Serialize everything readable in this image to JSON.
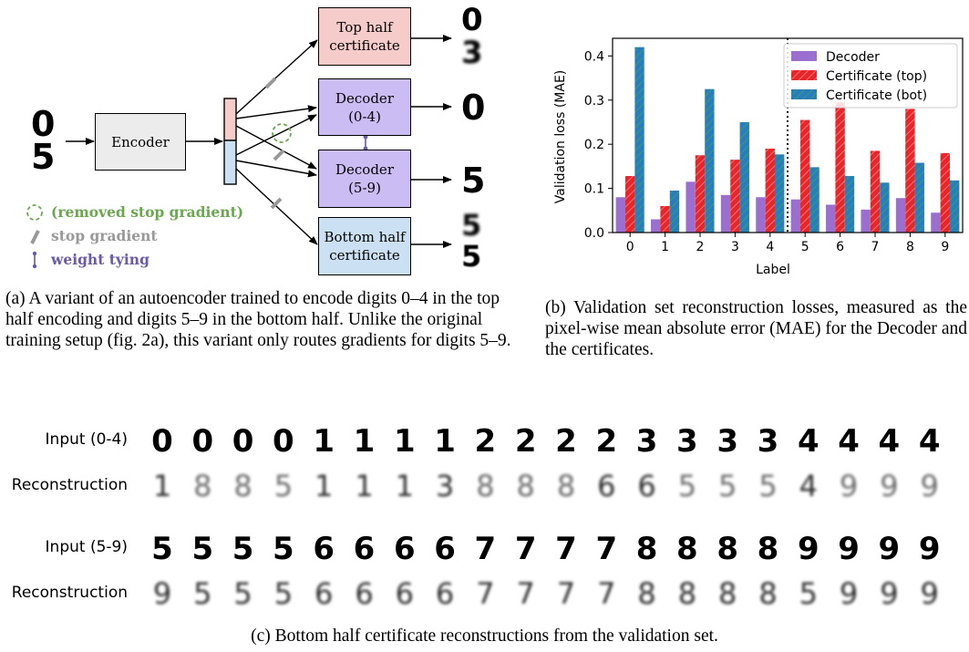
{
  "diagram": {
    "input_digits": [
      "0",
      "5"
    ],
    "encoder_label": "Encoder",
    "top_certificate_label": "Top half certificate",
    "decoder_top_label": "Decoder (0-4)",
    "decoder_bottom_label": "Decoder (5-9)",
    "bottom_certificate_label": "Bottom half certificate",
    "output_top_certificate": [
      "0",
      "3"
    ],
    "output_decoder_top": "0",
    "output_decoder_bottom": "5",
    "output_bottom_certificate": [
      "5",
      "5"
    ],
    "legend": {
      "removed_stop_gradient": "(removed stop gradient)",
      "stop_gradient": "stop gradient",
      "weight_tying": "weight tying"
    },
    "colors": {
      "encoder": "#ececec",
      "top_certificate": "#f6cccb",
      "decoder": "#cbbcf3",
      "bottom_certificate": "#cce0f3",
      "removed_stop_gradient": "#6aa84f",
      "stop_gradient": "#999999",
      "weight_tying": "#6a5aaa"
    }
  },
  "caption_a": "(a) A variant of an autoencoder trained to encode digits 0–4 in the top half encoding and digits 5–9 in the bottom half. Unlike the original training setup (fig. 2a), this variant only routes gradients for digits 5–9.",
  "caption_b": "(b) Validation set reconstruction losses, measured as the pixel-wise mean absolute error (MAE) for the Decoder and the certificates.",
  "caption_c": "(c) Bottom half certificate reconstructions from the validation set.",
  "chart_data": {
    "type": "bar",
    "categories": [
      "0",
      "1",
      "2",
      "3",
      "4",
      "5",
      "6",
      "7",
      "8",
      "9"
    ],
    "series": [
      {
        "name": "Decoder",
        "color": "#9a6fcf",
        "values": [
          0.08,
          0.03,
          0.115,
          0.085,
          0.08,
          0.075,
          0.063,
          0.052,
          0.078,
          0.045
        ]
      },
      {
        "name": "Certificate (top)",
        "color": "#e8262a",
        "values": [
          0.128,
          0.06,
          0.175,
          0.165,
          0.19,
          0.255,
          0.295,
          0.185,
          0.28,
          0.18
        ]
      },
      {
        "name": "Certificate (bot)",
        "color": "#2b7bbd",
        "values": [
          0.42,
          0.095,
          0.325,
          0.25,
          0.177,
          0.148,
          0.128,
          0.113,
          0.158,
          0.118
        ]
      }
    ],
    "xlabel": "Label",
    "ylabel": "Validation loss (MAE)",
    "ylim": [
      0,
      0.44
    ],
    "yticks": [
      "0.0",
      "0.1",
      "0.2",
      "0.3",
      "0.4"
    ],
    "legend_position": "top-right",
    "divider_after_category": "4"
  },
  "reconstructions": {
    "rows": [
      {
        "label": "Input (0-4)",
        "digits": [
          "0",
          "0",
          "0",
          "0",
          "1",
          "1",
          "1",
          "1",
          "2",
          "2",
          "2",
          "2",
          "3",
          "3",
          "3",
          "3",
          "4",
          "4",
          "4",
          "4"
        ]
      },
      {
        "label": "Reconstruction",
        "digits": [
          "1",
          "8",
          "8",
          "5",
          "1",
          "1",
          "1",
          "3",
          "8",
          "8",
          "8",
          "6",
          "6",
          "5",
          "5",
          "5",
          "4",
          "9",
          "9",
          "9"
        ]
      },
      {
        "label": "Input (5-9)",
        "digits": [
          "5",
          "5",
          "5",
          "5",
          "6",
          "6",
          "6",
          "6",
          "7",
          "7",
          "7",
          "7",
          "8",
          "8",
          "8",
          "8",
          "9",
          "9",
          "9",
          "9"
        ]
      },
      {
        "label": "Reconstruction",
        "digits": [
          "9",
          "5",
          "5",
          "5",
          "6",
          "6",
          "6",
          "6",
          "7",
          "7",
          "7",
          "7",
          "8",
          "8",
          "8",
          "8",
          "5",
          "9",
          "9",
          "9"
        ]
      }
    ]
  }
}
